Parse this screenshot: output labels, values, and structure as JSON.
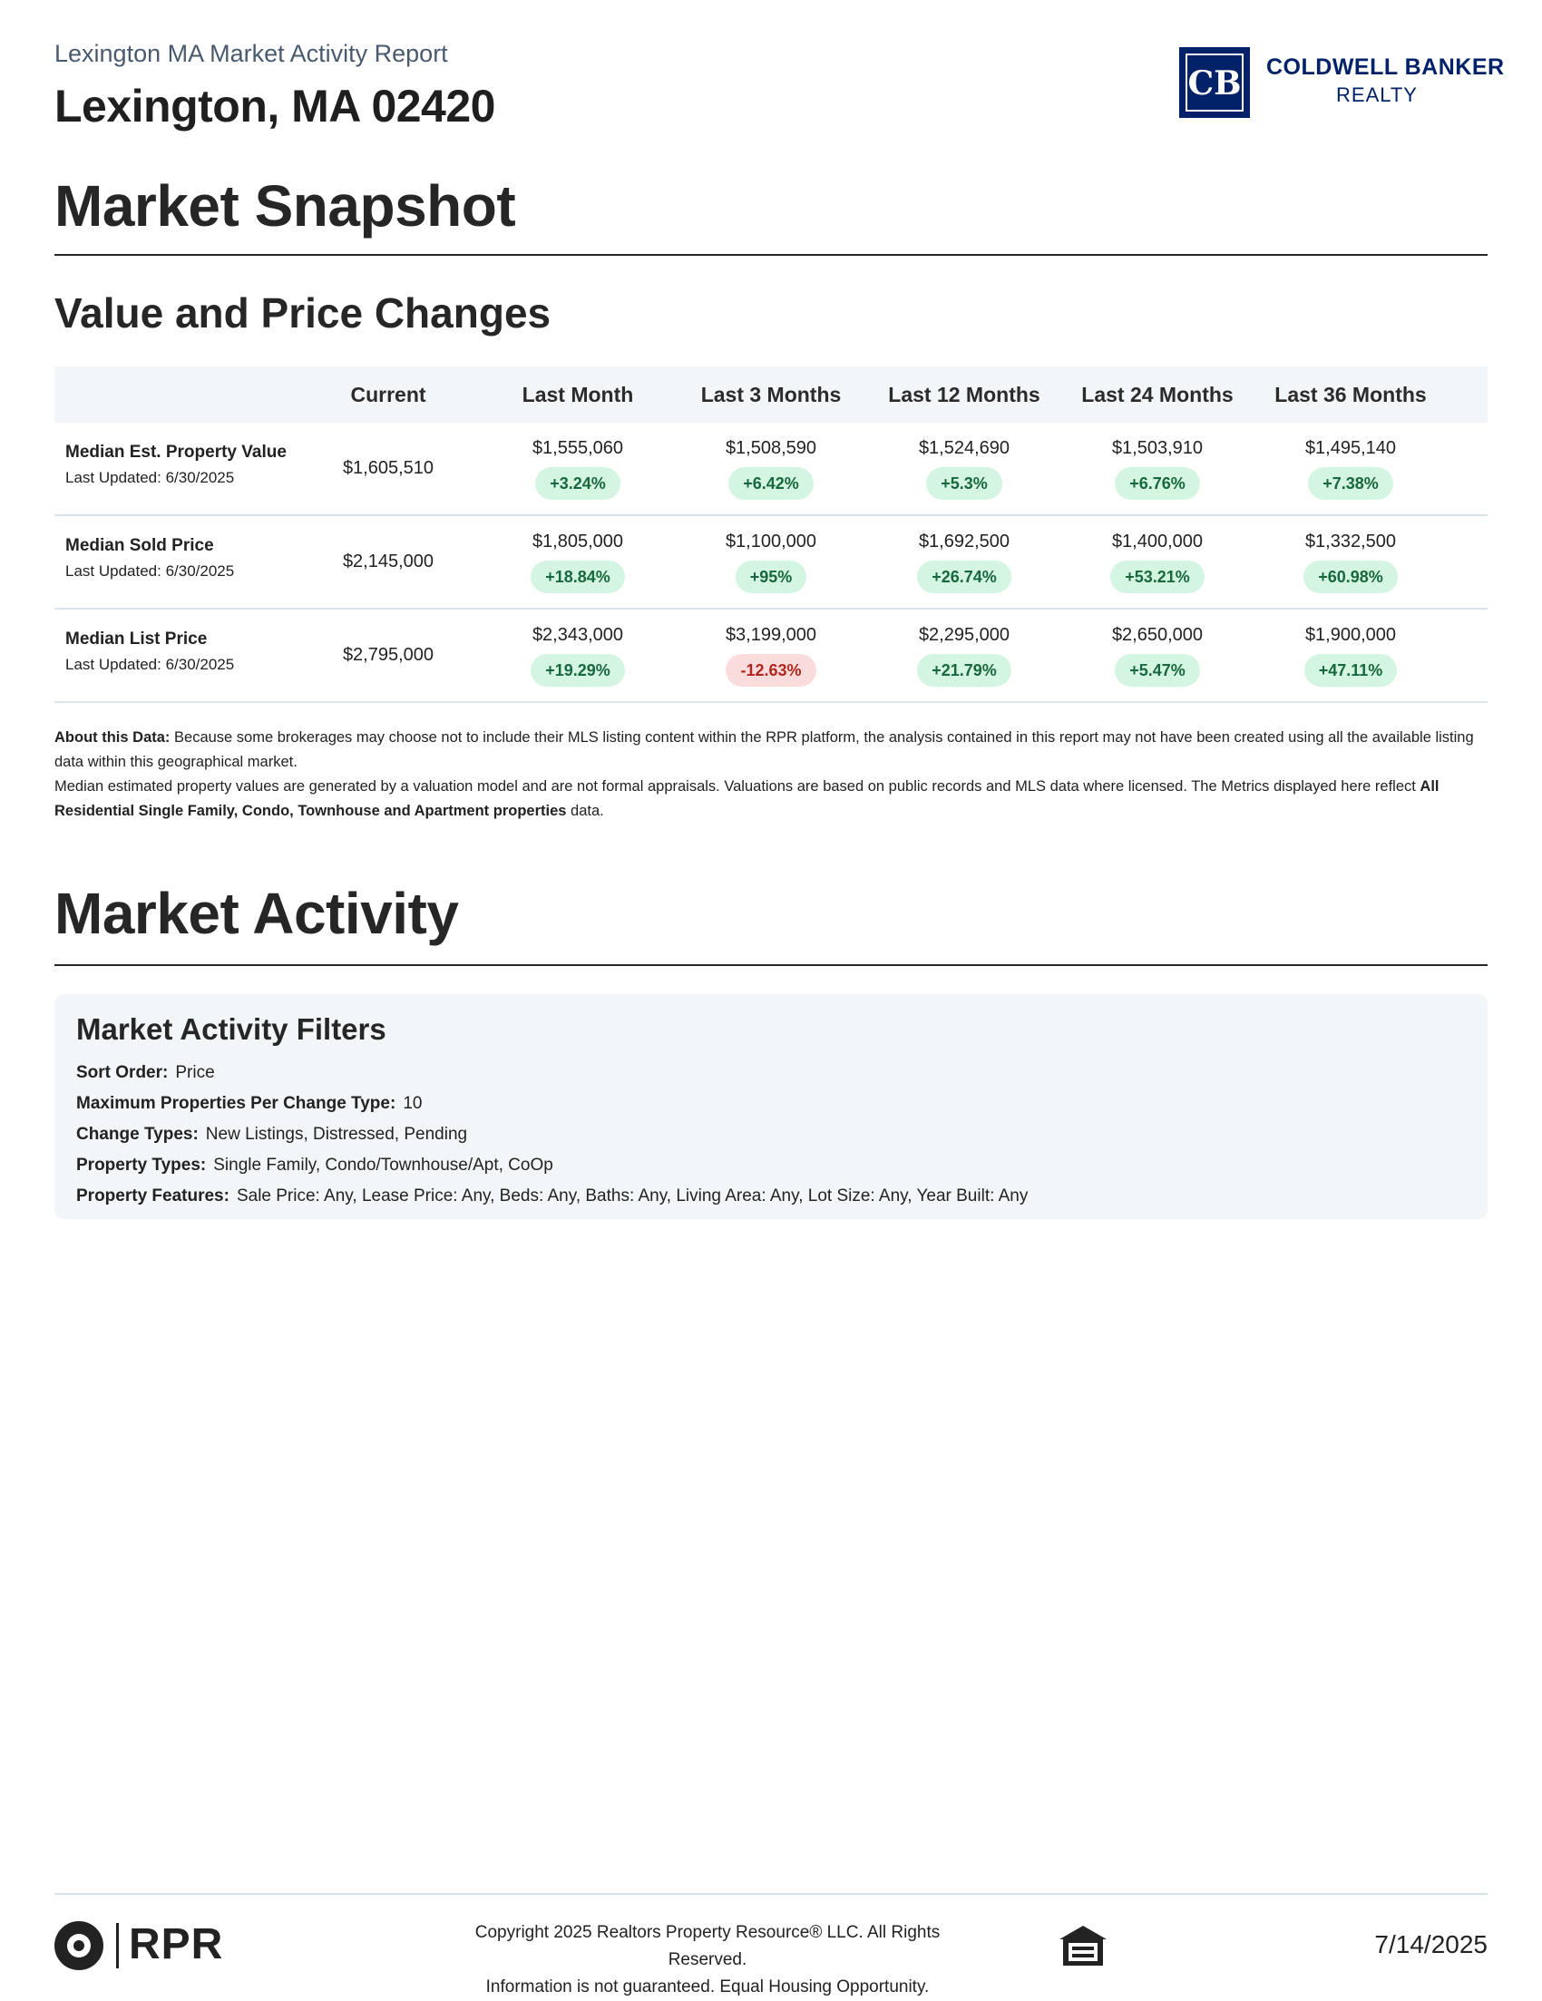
{
  "header": {
    "report_title": "Lexington MA Market Activity Report",
    "location": "Lexington, MA 02420",
    "logo": {
      "mark": "CB",
      "line1": "COLDWELL BANKER",
      "line2": "REALTY",
      "color": "#012169"
    }
  },
  "snapshot": {
    "title": "Market Snapshot",
    "subtitle": "Value and Price Changes",
    "columns": [
      "Current",
      "Last Month",
      "Last 3 Months",
      "Last 12 Months",
      "Last 24 Months",
      "Last 36 Months"
    ],
    "rows": [
      {
        "label": "Median Est. Property Value",
        "updated": "Last Updated: 6/30/2025",
        "current": "$1,605,510",
        "periods": [
          {
            "value": "$1,555,060",
            "change": "+3.24%",
            "trend": "up"
          },
          {
            "value": "$1,508,590",
            "change": "+6.42%",
            "trend": "up"
          },
          {
            "value": "$1,524,690",
            "change": "+5.3%",
            "trend": "up"
          },
          {
            "value": "$1,503,910",
            "change": "+6.76%",
            "trend": "up"
          },
          {
            "value": "$1,495,140",
            "change": "+7.38%",
            "trend": "up"
          }
        ]
      },
      {
        "label": "Median Sold Price",
        "updated": "Last Updated: 6/30/2025",
        "current": "$2,145,000",
        "periods": [
          {
            "value": "$1,805,000",
            "change": "+18.84%",
            "trend": "up"
          },
          {
            "value": "$1,100,000",
            "change": "+95%",
            "trend": "up"
          },
          {
            "value": "$1,692,500",
            "change": "+26.74%",
            "trend": "up"
          },
          {
            "value": "$1,400,000",
            "change": "+53.21%",
            "trend": "up"
          },
          {
            "value": "$1,332,500",
            "change": "+60.98%",
            "trend": "up"
          }
        ]
      },
      {
        "label": "Median List Price",
        "updated": "Last Updated: 6/30/2025",
        "current": "$2,795,000",
        "periods": [
          {
            "value": "$2,343,000",
            "change": "+19.29%",
            "trend": "up"
          },
          {
            "value": "$3,199,000",
            "change": "-12.63%",
            "trend": "down"
          },
          {
            "value": "$2,295,000",
            "change": "+21.79%",
            "trend": "up"
          },
          {
            "value": "$2,650,000",
            "change": "+5.47%",
            "trend": "up"
          },
          {
            "value": "$1,900,000",
            "change": "+47.11%",
            "trend": "up"
          }
        ]
      }
    ],
    "colors": {
      "positive_bg": "#d5f5e3",
      "positive_text": "#17683c",
      "negative_bg": "#fbdcdc",
      "negative_text": "#b3261e"
    }
  },
  "about": {
    "label": "About this Data:",
    "text1": "Because some brokerages may choose not to include their MLS listing content within the RPR platform, the analysis contained in this report may not have been created using all the available listing data within this geographical market.",
    "text2": "Median estimated property values are generated by a valuation model and are not formal appraisals. Valuations are based on public records and MLS data where licensed. The Metrics displayed here reflect",
    "text2_bold": "All Residential Single Family, Condo, Townhouse and Apartment properties",
    "text2_end": "data."
  },
  "activity": {
    "title": "Market Activity",
    "filters_title": "Market Activity Filters",
    "filters": [
      {
        "key": "Sort Order:",
        "value": "Price"
      },
      {
        "key": "Maximum Properties Per Change Type:",
        "value": "10"
      },
      {
        "key": "Change Types:",
        "value": "New Listings, Distressed, Pending"
      },
      {
        "key": "Property Types:",
        "value": "Single Family, Condo/Townhouse/Apt, CoOp"
      },
      {
        "key": "Property Features:",
        "value": "Sale Price: Any, Lease Price: Any, Beds: Any, Baths: Any, Living Area: Any, Lot Size: Any, Year Built: Any"
      }
    ]
  },
  "footer": {
    "brand": "RPR",
    "copyright_line1": "Copyright 2025 Realtors Property Resource® LLC. All Rights Reserved.",
    "copyright_line2": "Information is not guaranteed. Equal Housing Opportunity.",
    "date": "7/14/2025",
    "icons": [
      "rpr-logo-icon",
      "equal-housing-icon"
    ]
  }
}
